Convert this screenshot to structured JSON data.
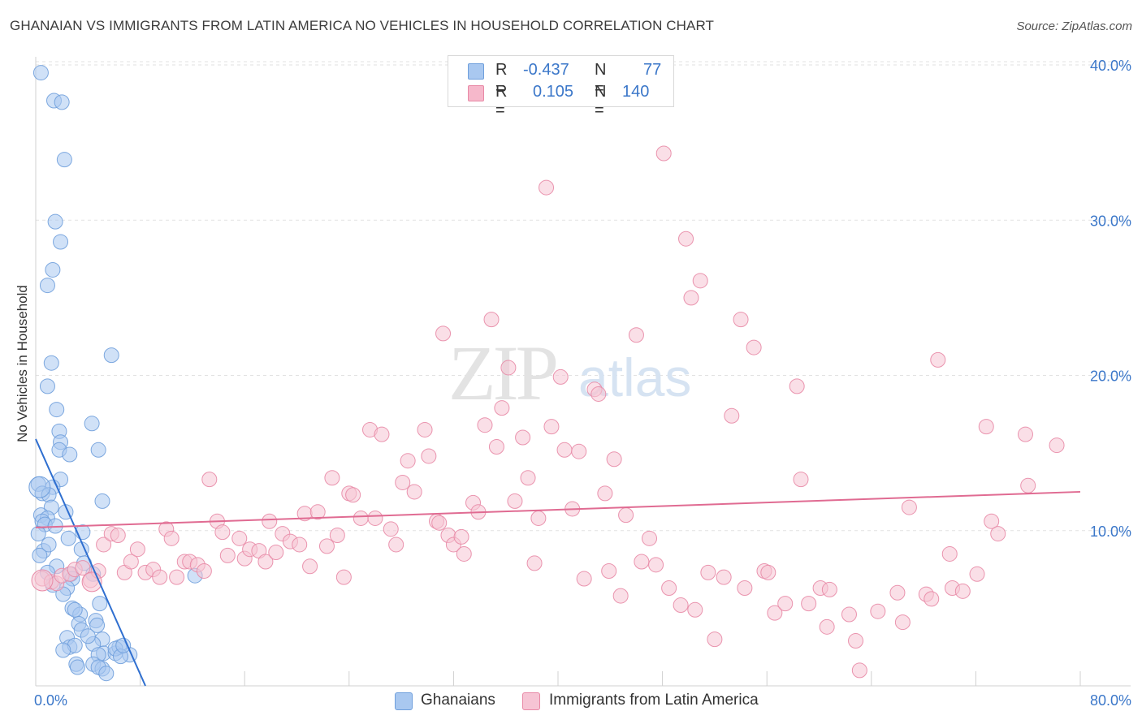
{
  "title": "GHANAIAN VS IMMIGRANTS FROM LATIN AMERICA NO VEHICLES IN HOUSEHOLD CORRELATION CHART",
  "source": "Source: ZipAtlas.com",
  "watermark": {
    "zip": "ZIP",
    "atlas": "atlas"
  },
  "legend": {
    "rows": [
      {
        "r_label": "R =",
        "r_value": "-0.437",
        "n_label": "N =",
        "n_value": "77",
        "color": "#a9c8f0",
        "border": "#6f9fdc"
      },
      {
        "r_label": "R =",
        "r_value": "0.105",
        "n_label": "N =",
        "n_value": "140",
        "color": "#f6b8cb",
        "border": "#e889a6"
      }
    ]
  },
  "bottom_legend": [
    {
      "label": "Ghanaians",
      "color": "#a9c8f0",
      "border": "#6f9fdc"
    },
    {
      "label": "Immigrants from Latin America",
      "color": "#f6c4d4",
      "border": "#e889a6"
    }
  ],
  "chart_data": {
    "type": "scatter",
    "title": "GHANAIAN VS IMMIGRANTS FROM LATIN AMERICA NO VEHICLES IN HOUSEHOLD CORRELATION CHART",
    "xlabel": "",
    "ylabel": "No Vehicles in Household",
    "xlim": [
      0,
      80
    ],
    "ylim": [
      0,
      40
    ],
    "x_tick_labels": [
      "0.0%",
      "80.0%"
    ],
    "y_ticks": [
      10,
      20,
      30,
      40
    ],
    "y_tick_labels": [
      "10.0%",
      "20.0%",
      "30.0%",
      "40.0%"
    ],
    "grid": true,
    "series": [
      {
        "name": "Ghanaians",
        "color": "#6f9fdc",
        "fill": "#a9c8f0",
        "trend": [
          [
            0.0,
            15.9
          ],
          [
            8.4,
            0.0
          ]
        ],
        "points": [
          [
            0.4,
            39.5
          ],
          [
            1.4,
            37.7
          ],
          [
            2.0,
            37.6
          ],
          [
            2.2,
            33.9
          ],
          [
            1.5,
            29.9
          ],
          [
            1.9,
            28.6
          ],
          [
            1.3,
            26.8
          ],
          [
            0.9,
            25.8
          ],
          [
            5.8,
            21.3
          ],
          [
            1.2,
            20.8
          ],
          [
            0.9,
            19.3
          ],
          [
            1.6,
            17.8
          ],
          [
            4.3,
            16.9
          ],
          [
            1.8,
            16.4
          ],
          [
            1.9,
            15.7
          ],
          [
            4.8,
            15.2
          ],
          [
            1.8,
            15.2
          ],
          [
            2.6,
            14.9
          ],
          [
            1.9,
            13.3
          ],
          [
            0.2,
            13.0
          ],
          [
            1.3,
            12.8
          ],
          [
            0.5,
            12.4
          ],
          [
            1.0,
            12.3
          ],
          [
            5.1,
            11.9
          ],
          [
            1.2,
            11.5
          ],
          [
            2.3,
            11.2
          ],
          [
            0.4,
            11.0
          ],
          [
            0.9,
            10.8
          ],
          [
            0.5,
            10.6
          ],
          [
            0.7,
            10.4
          ],
          [
            1.5,
            10.3
          ],
          [
            0.2,
            9.8
          ],
          [
            3.6,
            9.9
          ],
          [
            0.6,
            8.7
          ],
          [
            3.5,
            8.8
          ],
          [
            3.7,
            7.9
          ],
          [
            1.6,
            7.7
          ],
          [
            0.9,
            7.3
          ],
          [
            2.7,
            7.2
          ],
          [
            4.4,
            7.2
          ],
          [
            2.8,
            6.9
          ],
          [
            1.3,
            6.5
          ],
          [
            2.4,
            6.3
          ],
          [
            2.1,
            5.9
          ],
          [
            12.2,
            7.1
          ],
          [
            4.9,
            5.3
          ],
          [
            2.8,
            5.0
          ],
          [
            3.4,
            4.6
          ],
          [
            4.6,
            4.2
          ],
          [
            3.3,
            4.0
          ],
          [
            4.7,
            3.9
          ],
          [
            3.5,
            3.6
          ],
          [
            2.4,
            3.1
          ],
          [
            5.1,
            3.0
          ],
          [
            4.4,
            2.7
          ],
          [
            2.6,
            2.5
          ],
          [
            3.0,
            2.6
          ],
          [
            2.1,
            2.3
          ],
          [
            5.2,
            2.1
          ],
          [
            4.8,
            2.0
          ],
          [
            6.1,
            2.1
          ],
          [
            6.4,
            2.5
          ],
          [
            6.1,
            2.4
          ],
          [
            7.2,
            2.0
          ],
          [
            6.5,
            1.9
          ],
          [
            3.1,
            1.4
          ],
          [
            4.4,
            1.4
          ],
          [
            5.1,
            1.1
          ],
          [
            4.8,
            1.2
          ],
          [
            3.2,
            1.2
          ],
          [
            5.4,
            0.8
          ],
          [
            2.5,
            9.5
          ],
          [
            0.3,
            8.4
          ],
          [
            1.0,
            9.1
          ],
          [
            3.0,
            4.9
          ],
          [
            6.7,
            2.6
          ],
          [
            4.0,
            3.2
          ]
        ]
      },
      {
        "name": "Immigrants from Latin America",
        "color": "#e889a6",
        "fill": "#f6c4d4",
        "trend": [
          [
            0.0,
            10.2
          ],
          [
            80.0,
            12.5
          ]
        ],
        "points": [
          [
            0.5,
            6.9
          ],
          [
            1.2,
            6.7
          ],
          [
            1.6,
            6.6
          ],
          [
            2.0,
            7.1
          ],
          [
            2.6,
            7.2
          ],
          [
            3.0,
            7.5
          ],
          [
            3.6,
            7.6
          ],
          [
            4.2,
            6.8
          ],
          [
            4.8,
            7.4
          ],
          [
            5.2,
            9.1
          ],
          [
            5.8,
            9.8
          ],
          [
            6.3,
            9.7
          ],
          [
            6.8,
            7.3
          ],
          [
            7.3,
            8.0
          ],
          [
            7.8,
            8.8
          ],
          [
            8.4,
            7.3
          ],
          [
            9.0,
            7.5
          ],
          [
            9.5,
            7.0
          ],
          [
            10.0,
            10.1
          ],
          [
            10.4,
            9.5
          ],
          [
            10.8,
            7.0
          ],
          [
            11.4,
            8.0
          ],
          [
            11.8,
            8.0
          ],
          [
            12.4,
            7.8
          ],
          [
            12.9,
            7.4
          ],
          [
            13.3,
            13.3
          ],
          [
            13.9,
            10.6
          ],
          [
            14.3,
            9.9
          ],
          [
            14.7,
            8.4
          ],
          [
            15.6,
            9.5
          ],
          [
            16.0,
            8.2
          ],
          [
            16.4,
            8.8
          ],
          [
            17.1,
            8.7
          ],
          [
            17.6,
            8.0
          ],
          [
            17.9,
            10.6
          ],
          [
            18.4,
            8.6
          ],
          [
            18.9,
            9.8
          ],
          [
            19.5,
            9.3
          ],
          [
            20.2,
            9.1
          ],
          [
            20.6,
            11.1
          ],
          [
            21.0,
            7.7
          ],
          [
            21.6,
            11.2
          ],
          [
            22.3,
            9.0
          ],
          [
            22.7,
            13.4
          ],
          [
            23.1,
            9.7
          ],
          [
            23.6,
            7.0
          ],
          [
            24.0,
            12.4
          ],
          [
            24.3,
            12.3
          ],
          [
            24.9,
            10.8
          ],
          [
            25.6,
            16.5
          ],
          [
            26.0,
            10.8
          ],
          [
            26.5,
            16.2
          ],
          [
            27.2,
            10.1
          ],
          [
            27.6,
            9.1
          ],
          [
            28.1,
            13.1
          ],
          [
            28.5,
            14.5
          ],
          [
            29.0,
            12.5
          ],
          [
            29.8,
            16.5
          ],
          [
            30.1,
            14.8
          ],
          [
            30.7,
            10.6
          ],
          [
            30.9,
            10.5
          ],
          [
            31.2,
            22.7
          ],
          [
            31.6,
            9.7
          ],
          [
            32.0,
            9.1
          ],
          [
            32.6,
            9.6
          ],
          [
            32.8,
            8.5
          ],
          [
            33.5,
            11.8
          ],
          [
            33.9,
            11.2
          ],
          [
            34.4,
            16.8
          ],
          [
            34.9,
            23.6
          ],
          [
            35.3,
            15.4
          ],
          [
            35.7,
            17.9
          ],
          [
            36.2,
            20.5
          ],
          [
            36.7,
            11.9
          ],
          [
            37.3,
            16.0
          ],
          [
            37.7,
            13.4
          ],
          [
            38.2,
            7.9
          ],
          [
            38.5,
            10.8
          ],
          [
            39.1,
            32.1
          ],
          [
            39.5,
            16.7
          ],
          [
            40.2,
            19.9
          ],
          [
            40.5,
            15.2
          ],
          [
            41.1,
            11.4
          ],
          [
            41.6,
            15.1
          ],
          [
            42.0,
            6.9
          ],
          [
            42.8,
            19.1
          ],
          [
            43.1,
            18.8
          ],
          [
            43.6,
            12.4
          ],
          [
            43.9,
            7.4
          ],
          [
            44.3,
            14.6
          ],
          [
            44.8,
            5.8
          ],
          [
            45.2,
            11.0
          ],
          [
            46.0,
            22.6
          ],
          [
            46.4,
            8.0
          ],
          [
            47.0,
            9.5
          ],
          [
            47.5,
            7.8
          ],
          [
            48.1,
            34.3
          ],
          [
            48.5,
            6.3
          ],
          [
            49.4,
            5.2
          ],
          [
            49.8,
            28.8
          ],
          [
            50.2,
            25.0
          ],
          [
            50.5,
            4.9
          ],
          [
            50.9,
            26.1
          ],
          [
            51.5,
            7.3
          ],
          [
            52.0,
            3.0
          ],
          [
            52.7,
            7.0
          ],
          [
            53.3,
            17.4
          ],
          [
            54.0,
            23.6
          ],
          [
            54.3,
            6.3
          ],
          [
            55.0,
            21.8
          ],
          [
            55.8,
            7.4
          ],
          [
            56.1,
            7.3
          ],
          [
            56.6,
            4.7
          ],
          [
            57.4,
            5.3
          ],
          [
            58.3,
            19.3
          ],
          [
            58.6,
            13.3
          ],
          [
            59.2,
            5.3
          ],
          [
            60.1,
            6.3
          ],
          [
            60.6,
            3.8
          ],
          [
            60.8,
            6.2
          ],
          [
            62.3,
            4.6
          ],
          [
            62.8,
            2.9
          ],
          [
            63.1,
            1.0
          ],
          [
            64.5,
            4.8
          ],
          [
            66.0,
            6.0
          ],
          [
            66.4,
            4.1
          ],
          [
            66.9,
            11.5
          ],
          [
            68.2,
            5.9
          ],
          [
            68.6,
            5.6
          ],
          [
            69.1,
            21.0
          ],
          [
            70.0,
            8.5
          ],
          [
            70.2,
            6.3
          ],
          [
            71.0,
            6.1
          ],
          [
            72.1,
            7.2
          ],
          [
            72.8,
            16.7
          ],
          [
            73.2,
            10.6
          ],
          [
            73.7,
            9.8
          ],
          [
            76.0,
            12.9
          ],
          [
            75.8,
            16.2
          ],
          [
            78.2,
            15.5
          ]
        ]
      }
    ]
  }
}
